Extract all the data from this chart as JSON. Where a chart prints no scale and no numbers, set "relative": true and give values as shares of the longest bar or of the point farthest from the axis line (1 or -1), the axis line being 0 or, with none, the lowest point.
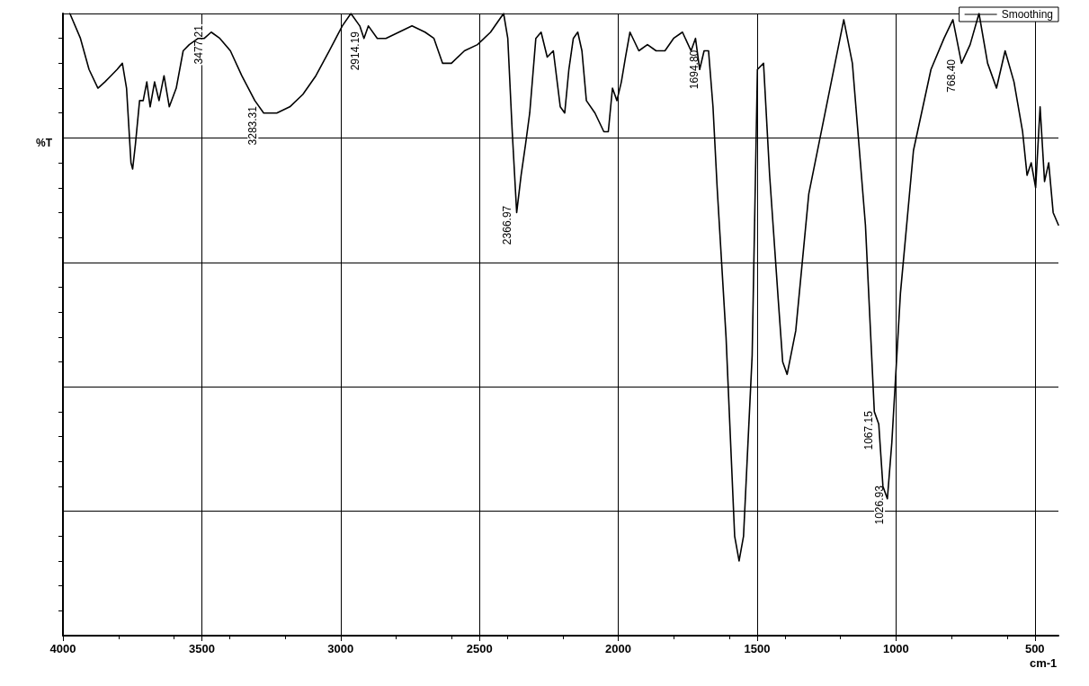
{
  "chart_data": {
    "type": "line",
    "relative": true,
    "ylabel": "%T",
    "xlabel": "cm-1",
    "xlim": [
      4000,
      415
    ],
    "xticks": [
      {
        "value": 4000,
        "label": "4000"
      },
      {
        "value": 3500,
        "label": "3500"
      },
      {
        "value": 3000,
        "label": "3000"
      },
      {
        "value": 2500,
        "label": "2500"
      },
      {
        "value": 2000,
        "label": "2000"
      },
      {
        "value": 1500,
        "label": "1500"
      },
      {
        "value": 1000,
        "label": "1000"
      },
      {
        "value": 500,
        "label": "500"
      }
    ],
    "grid": true,
    "legend": "top right",
    "marker": "none",
    "line_style": "solid",
    "x": [
      3975,
      3937,
      3906,
      3874,
      3849,
      3827,
      3805,
      3786,
      3771,
      3755,
      3749,
      3739,
      3724,
      3711,
      3698,
      3686,
      3670,
      3654,
      3636,
      3617,
      3592,
      3567,
      3545,
      3513,
      3491,
      3466,
      3435,
      3397,
      3356,
      3309,
      3277,
      3230,
      3183,
      3136,
      3089,
      3041,
      2994,
      2963,
      2931,
      2916,
      2900,
      2868,
      2837,
      2790,
      2743,
      2696,
      2664,
      2633,
      2601,
      2554,
      2507,
      2460,
      2429,
      2413,
      2398,
      2382,
      2366,
      2350,
      2334,
      2319,
      2297,
      2278,
      2256,
      2234,
      2209,
      2193,
      2178,
      2162,
      2146,
      2131,
      2115,
      2084,
      2052,
      2036,
      2021,
      2005,
      1989,
      1974,
      1958,
      1926,
      1895,
      1864,
      1832,
      1801,
      1769,
      1738,
      1722,
      1707,
      1691,
      1675,
      1659,
      1644,
      1612,
      1581,
      1565,
      1549,
      1518,
      1499,
      1477,
      1455,
      1424,
      1408,
      1392,
      1361,
      1314,
      1251,
      1188,
      1157,
      1110,
      1078,
      1062,
      1047,
      1031,
      1015,
      984,
      937,
      874,
      827,
      795,
      764,
      733,
      701,
      670,
      638,
      607,
      575,
      544,
      528,
      513,
      497,
      481,
      465,
      450,
      434,
      415
    ],
    "series": [
      {
        "name": "Smoothing",
        "color": "#000000",
        "values": [
          1.0,
          0.96,
          0.91,
          0.88,
          0.89,
          0.9,
          0.91,
          0.92,
          0.88,
          0.76,
          0.75,
          0.79,
          0.86,
          0.86,
          0.89,
          0.85,
          0.89,
          0.86,
          0.9,
          0.85,
          0.88,
          0.94,
          0.95,
          0.96,
          0.96,
          0.97,
          0.96,
          0.94,
          0.9,
          0.86,
          0.84,
          0.84,
          0.85,
          0.87,
          0.9,
          0.94,
          0.98,
          1.0,
          0.98,
          0.96,
          0.98,
          0.96,
          0.96,
          0.97,
          0.98,
          0.97,
          0.96,
          0.92,
          0.92,
          0.94,
          0.95,
          0.97,
          0.99,
          1.0,
          0.96,
          0.81,
          0.68,
          0.74,
          0.79,
          0.84,
          0.96,
          0.97,
          0.93,
          0.94,
          0.85,
          0.84,
          0.91,
          0.96,
          0.97,
          0.94,
          0.86,
          0.84,
          0.81,
          0.81,
          0.88,
          0.86,
          0.89,
          0.93,
          0.97,
          0.94,
          0.95,
          0.94,
          0.94,
          0.96,
          0.97,
          0.94,
          0.96,
          0.91,
          0.94,
          0.94,
          0.85,
          0.72,
          0.48,
          0.16,
          0.12,
          0.16,
          0.45,
          0.91,
          0.92,
          0.74,
          0.54,
          0.44,
          0.42,
          0.49,
          0.71,
          0.85,
          0.99,
          0.92,
          0.66,
          0.36,
          0.34,
          0.24,
          0.22,
          0.31,
          0.55,
          0.78,
          0.91,
          0.96,
          0.99,
          0.92,
          0.95,
          1.0,
          0.92,
          0.88,
          0.94,
          0.89,
          0.81,
          0.74,
          0.76,
          0.72,
          0.85,
          0.73,
          0.76,
          0.68,
          0.66
        ]
      }
    ],
    "annotations": [
      {
        "text": "3477.21",
        "x": 3477.21,
        "y": 0.97
      },
      {
        "text": "3283.31",
        "x": 3283.31,
        "y": 0.84
      },
      {
        "text": "2914.19",
        "x": 2914.19,
        "y": 0.96
      },
      {
        "text": "2366.97",
        "x": 2366.97,
        "y": 0.68
      },
      {
        "text": "1694.80",
        "x": 1694.8,
        "y": 0.93
      },
      {
        "text": "1067.15",
        "x": 1067.15,
        "y": 0.35
      },
      {
        "text": "1026.93",
        "x": 1026.93,
        "y": 0.23
      },
      {
        "text": "768.40",
        "x": 768.4,
        "y": 0.92
      }
    ]
  }
}
